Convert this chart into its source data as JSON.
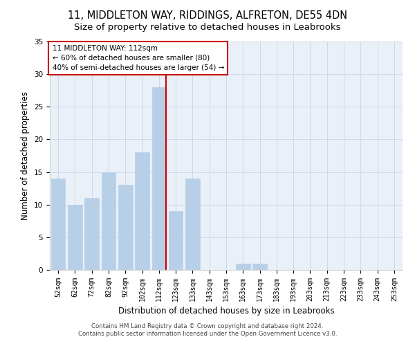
{
  "title1": "11, MIDDLETON WAY, RIDDINGS, ALFRETON, DE55 4DN",
  "title2": "Size of property relative to detached houses in Leabrooks",
  "xlabel": "Distribution of detached houses by size in Leabrooks",
  "ylabel": "Number of detached properties",
  "categories": [
    "52sqm",
    "62sqm",
    "72sqm",
    "82sqm",
    "92sqm",
    "102sqm",
    "112sqm",
    "123sqm",
    "133sqm",
    "143sqm",
    "153sqm",
    "163sqm",
    "173sqm",
    "183sqm",
    "193sqm",
    "203sqm",
    "213sqm",
    "223sqm",
    "233sqm",
    "243sqm",
    "253sqm"
  ],
  "values": [
    14,
    10,
    11,
    15,
    13,
    18,
    28,
    9,
    14,
    0,
    0,
    1,
    1,
    0,
    0,
    0,
    0,
    0,
    0,
    0,
    0
  ],
  "bar_color": "#b8cfe8",
  "bar_edgecolor": "#b8cfe8",
  "highlight_index": 6,
  "vline_color": "#cc0000",
  "annotation_text": "11 MIDDLETON WAY: 112sqm\n← 60% of detached houses are smaller (80)\n40% of semi-detached houses are larger (54) →",
  "annotation_box_color": "white",
  "annotation_box_edgecolor": "#cc0000",
  "ylim": [
    0,
    35
  ],
  "yticks": [
    0,
    5,
    10,
    15,
    20,
    25,
    30,
    35
  ],
  "grid_color": "#d0d8e8",
  "background_color": "#eaf0f8",
  "footer1": "Contains HM Land Registry data © Crown copyright and database right 2024.",
  "footer2": "Contains public sector information licensed under the Open Government Licence v3.0.",
  "title_fontsize": 10.5,
  "subtitle_fontsize": 9.5,
  "tick_fontsize": 7,
  "ylabel_fontsize": 8.5,
  "xlabel_fontsize": 8.5,
  "footer_fontsize": 6.2
}
